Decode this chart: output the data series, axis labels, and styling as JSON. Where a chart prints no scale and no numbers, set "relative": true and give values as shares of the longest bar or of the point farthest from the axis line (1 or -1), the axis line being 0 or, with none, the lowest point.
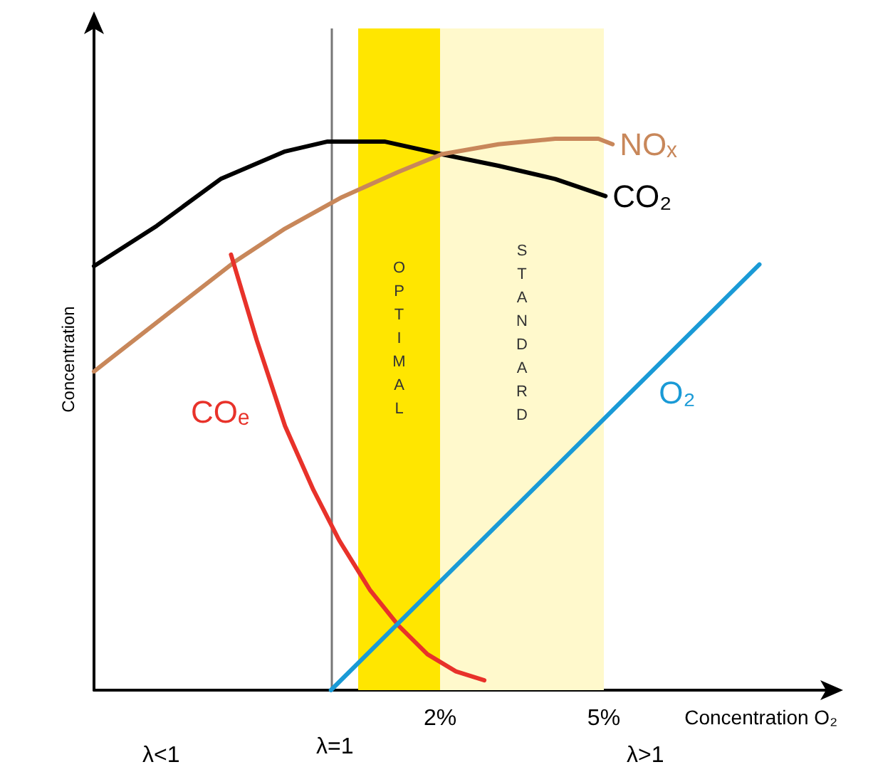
{
  "chart_data": {
    "type": "line",
    "relative": true,
    "xlabel": "Concentration O₂",
    "ylabel": "Concentration",
    "xlim": [
      -4.34,
      9.07
    ],
    "xticks": [
      {
        "value": 2,
        "label": "2%"
      },
      {
        "value": 5,
        "label": "5%"
      }
    ],
    "series": [
      {
        "name": "CO₂",
        "color": "#000000",
        "x": [
          -4.34,
          -3.19,
          -2.02,
          -0.84,
          -0.06,
          0.98,
          2.03,
          3.07,
          4.11,
          5.03
        ],
        "values": [
          0.769,
          0.842,
          0.927,
          0.977,
          0.995,
          0.995,
          0.972,
          0.951,
          0.927,
          0.896
        ]
      },
      {
        "name": "NOₓ",
        "color": "#c8875a",
        "x": [
          -4.34,
          -2.93,
          -1.76,
          -0.84,
          0.2,
          1.24,
          2.03,
          3.07,
          4.11,
          4.9,
          5.16
        ],
        "values": [
          0.578,
          0.687,
          0.777,
          0.837,
          0.894,
          0.94,
          0.972,
          0.99,
          1,
          1,
          0.99
        ]
      },
      {
        "name": "COₑ",
        "color": "#e8322a",
        "x": [
          -1.83,
          -1.36,
          -0.84,
          -0.32,
          0.15,
          0.72,
          1.24,
          1.77,
          2.29,
          2.81
        ],
        "values": [
          0.79,
          0.635,
          0.479,
          0.363,
          0.272,
          0.181,
          0.117,
          0.065,
          0.034,
          0.018
        ]
      },
      {
        "name": "O₂",
        "color": "#1a9ad6",
        "x": [
          0,
          7.85
        ],
        "values": [
          0,
          0.772
        ]
      }
    ],
    "bands": [
      {
        "axis": "x",
        "from": 0.5,
        "to": 2,
        "label": "OPTIMAL",
        "color": "#ffe600"
      },
      {
        "axis": "x",
        "from": 2,
        "to": 5,
        "label": "STANDARD",
        "color": "#fff9cc"
      }
    ],
    "ref_lines": [
      {
        "axis": "x",
        "value": 0,
        "color": "#777777"
      }
    ],
    "annotations": [
      "λ<1",
      "λ=1",
      "λ>1"
    ],
    "grid": false,
    "legend": false,
    "marker": "none",
    "line_style": "solid"
  }
}
